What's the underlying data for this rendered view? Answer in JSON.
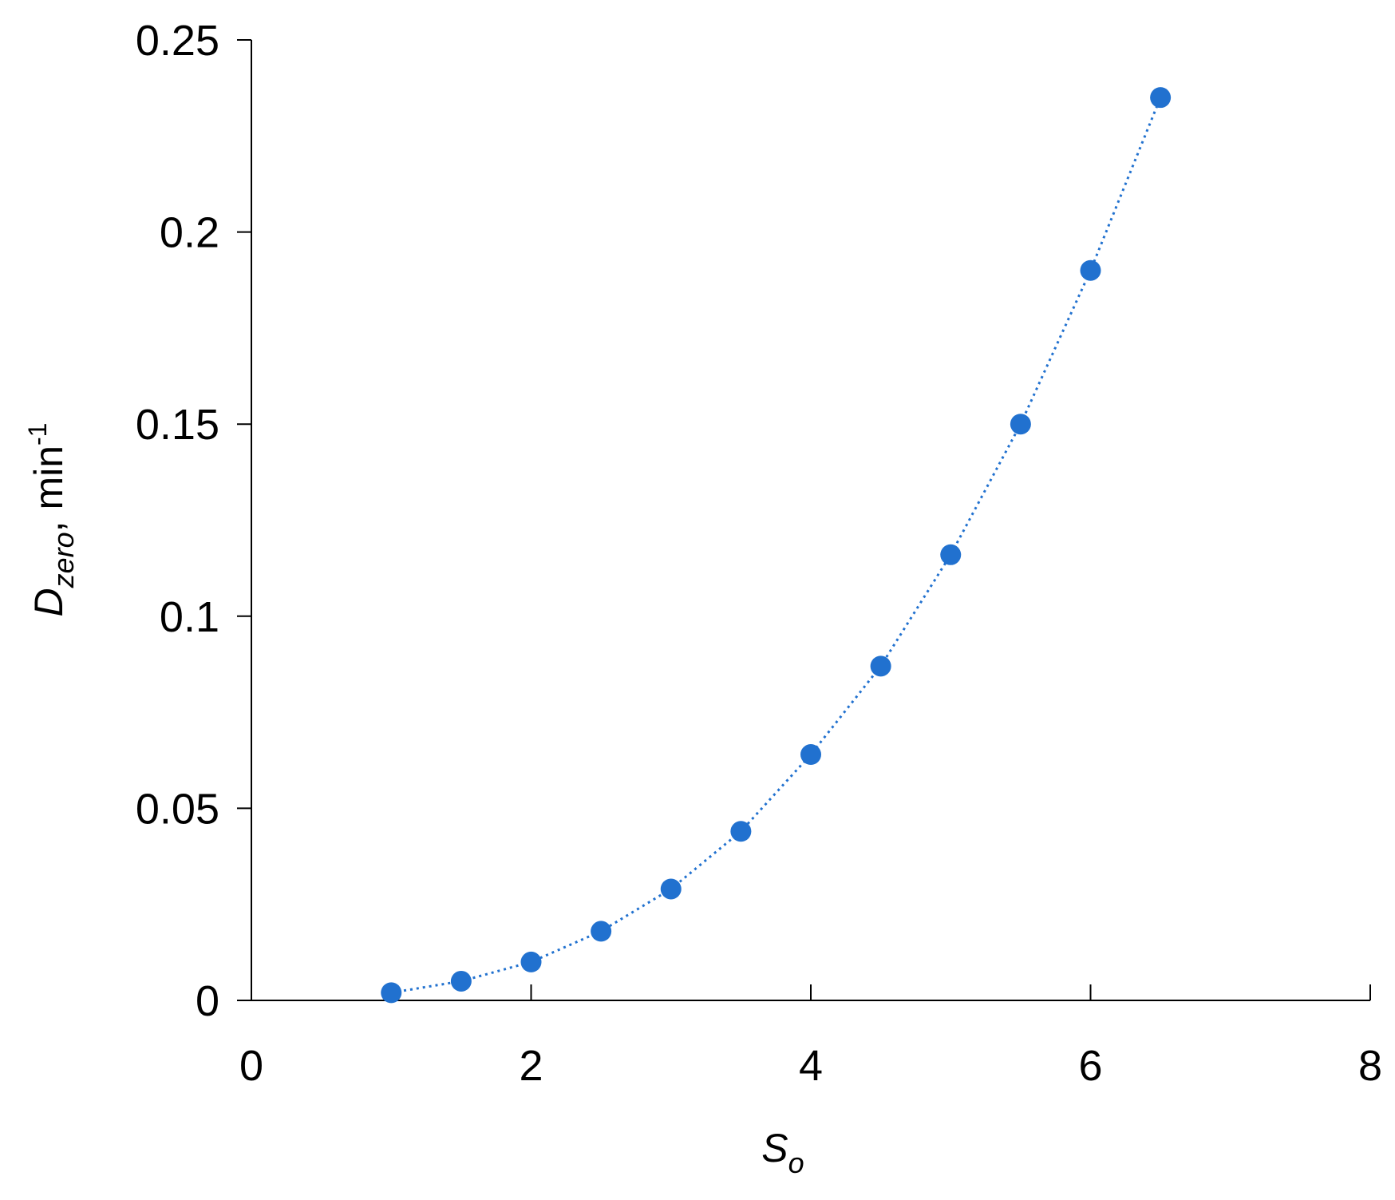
{
  "chart_data": {
    "type": "scatter",
    "x_label": {
      "main": "S",
      "sub": "o"
    },
    "y_label": {
      "main": "D",
      "sub": "zero",
      "rest": ", min",
      "sup": "-1"
    },
    "series": [
      {
        "color": "#2171cf",
        "line": "dotted",
        "x": [
          1,
          1.5,
          2,
          2.5,
          3,
          3.5,
          4,
          4.5,
          5,
          5.5,
          6,
          6.5
        ],
        "values": [
          0.002,
          0.005,
          0.01,
          0.018,
          0.029,
          0.044,
          0.064,
          0.087,
          0.116,
          0.15,
          0.19,
          0.235
        ]
      }
    ],
    "xlim": [
      0,
      8
    ],
    "xticks": [
      0,
      2,
      4,
      6,
      8
    ],
    "ylim": [
      0,
      0.25
    ],
    "yticks": [
      0,
      0.05,
      0.1,
      0.15,
      0.2,
      0.25
    ],
    "grid": false
  }
}
